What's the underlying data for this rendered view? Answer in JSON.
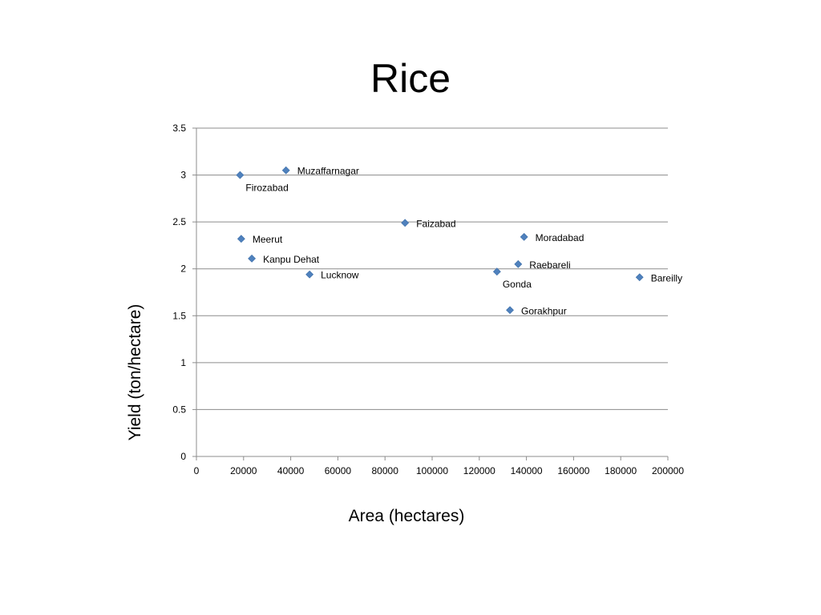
{
  "chart_data": {
    "type": "scatter",
    "title": "Rice",
    "xlabel": "Area (hectares)",
    "ylabel": "Yield (ton/hectare)",
    "xlim": [
      0,
      200000
    ],
    "ylim": [
      0,
      3.5
    ],
    "x_ticks": [
      0,
      20000,
      40000,
      60000,
      80000,
      100000,
      120000,
      140000,
      160000,
      180000,
      200000
    ],
    "y_ticks": [
      0,
      0.5,
      1,
      1.5,
      2,
      2.5,
      3,
      3.5
    ],
    "x_tick_labels": [
      "0",
      "20000",
      "40000",
      "60000",
      "80000",
      "100000",
      "120000",
      "140000",
      "160000",
      "180000",
      "200000"
    ],
    "y_tick_labels": [
      "0",
      "0.5",
      "1",
      "1.5",
      "2",
      "2.5",
      "3",
      "3.5"
    ],
    "grid": "horizontal",
    "marker": "diamond",
    "marker_color": "#4f81bd",
    "points": [
      {
        "label": "Firozabad",
        "x": 18500,
        "y": 3.0,
        "label_pos": "below-right"
      },
      {
        "label": "Muzaffarnagar",
        "x": 38000,
        "y": 3.05,
        "label_pos": "right"
      },
      {
        "label": "Faizabad",
        "x": 88500,
        "y": 2.49,
        "label_pos": "right"
      },
      {
        "label": "Meerut",
        "x": 19000,
        "y": 2.32,
        "label_pos": "right"
      },
      {
        "label": "Moradabad",
        "x": 139000,
        "y": 2.34,
        "label_pos": "right"
      },
      {
        "label": "Kanpu Dehat",
        "x": 23500,
        "y": 2.11,
        "label_pos": "right"
      },
      {
        "label": "Raebareli",
        "x": 136500,
        "y": 2.05,
        "label_pos": "right"
      },
      {
        "label": "Gonda",
        "x": 127500,
        "y": 1.97,
        "label_pos": "below-right"
      },
      {
        "label": "Lucknow",
        "x": 48000,
        "y": 1.94,
        "label_pos": "right"
      },
      {
        "label": "Bareilly",
        "x": 188000,
        "y": 1.91,
        "label_pos": "right"
      },
      {
        "label": "Gorakhpur",
        "x": 133000,
        "y": 1.56,
        "label_pos": "right"
      }
    ]
  }
}
